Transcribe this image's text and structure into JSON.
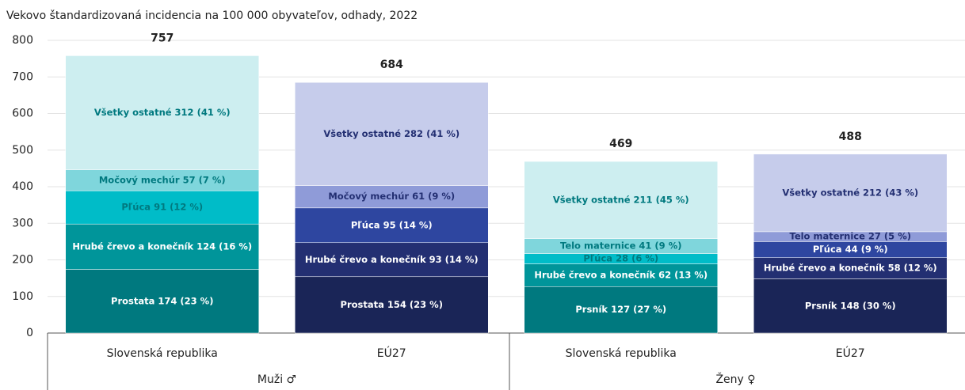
{
  "chart_data": {
    "type": "stacked-bar",
    "subtitle": "Vekovo štandardizovaná incidencia na 100 000 obyvateľov, odhady, 2022",
    "ylim": [
      0,
      800
    ],
    "yticks": [
      0,
      100,
      200,
      300,
      400,
      500,
      600,
      700,
      800
    ],
    "grid": true,
    "groups": [
      {
        "name": "Muži ♂",
        "bars": [
          {
            "category": "Slovenská republika",
            "total": 757,
            "values": [
              174,
              124,
              91,
              57,
              312
            ],
            "value_labels": [
              "Prostata 174 (23 %)",
              "Hrubé črevo a konečník 124 (16 %)",
              "Pľúca 91 (12 %)",
              "Močový mechúr 57 (7 %)",
              "Všetky ostatné 312 (41 %)"
            ],
            "colors": [
              "#00797f",
              "#00959a",
              "#00bcc8",
              "#7fd6dc",
              "#cdeef0"
            ]
          },
          {
            "category": "EÚ27",
            "total": 684,
            "values": [
              154,
              93,
              95,
              61,
              282
            ],
            "value_labels": [
              "Prostata 154 (23 %)",
              "Hrubé črevo a konečník 93 (14 %)",
              "Pľúca 95 (14 %)",
              "Močový mechúr 61 (9 %)",
              "Všetky ostatné 282 (41 %)"
            ],
            "colors": [
              "#1a2557",
              "#232f72",
              "#2e46a0",
              "#8f9bd8",
              "#c6cceb"
            ]
          }
        ]
      },
      {
        "name": "Ženy ♀",
        "bars": [
          {
            "category": "Slovenská republika",
            "total": 469,
            "values": [
              127,
              62,
              28,
              41,
              211
            ],
            "value_labels": [
              "Prsník 127 (27 %)",
              "Hrubé črevo a konečník 62 (13 %)",
              "Pľúca 28 (6 %)",
              "Telo maternice 41 (9 %)",
              "Všetky ostatné 211 (45 %)"
            ],
            "colors": [
              "#00797f",
              "#00959a",
              "#00bcc8",
              "#7fd6dc",
              "#cdeef0"
            ]
          },
          {
            "category": "EÚ27",
            "total": 488,
            "values": [
              148,
              58,
              44,
              27,
              212
            ],
            "value_labels": [
              "Prsník 148 (30 %)",
              "Hrubé črevo a konečník 58 (12 %)",
              "Pľúca 44 (9 %)",
              "Telo maternice 27 (5 %)",
              "Všetky ostatné 212 (43 %)"
            ],
            "colors": [
              "#1a2557",
              "#232f72",
              "#2e46a0",
              "#8f9bd8",
              "#c6cceb"
            ]
          }
        ]
      }
    ]
  }
}
